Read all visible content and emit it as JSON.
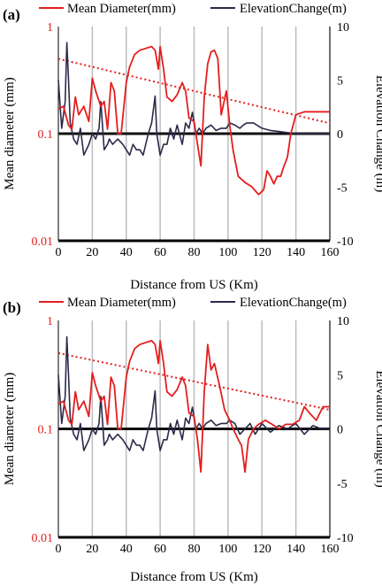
{
  "colors": {
    "diameter": "#e41e1e",
    "elevation": "#2a2a4a",
    "trend": "#e41e1e",
    "grid": "#bdbdbd",
    "ref": "#111111"
  },
  "chart_data": [
    {
      "panel_label": "(a)",
      "type": "line",
      "xlabel": "Distance from US (Km)",
      "ylabel_left": "Mean diameter (mm)",
      "ylabel_right": "Elevation Change (m)",
      "xlim": [
        0,
        160
      ],
      "x_ticks": [
        "0",
        "20",
        "40",
        "60",
        "80",
        "100",
        "120",
        "140",
        "160"
      ],
      "y_left_scale": "log",
      "ylim_left": [
        0.01,
        1
      ],
      "y_left_ticks": [
        "1",
        "0.1",
        "0.01"
      ],
      "ylim_right": [
        -10,
        10
      ],
      "y_right_ticks": [
        "10",
        "5",
        "0",
        "-5",
        "-10"
      ],
      "grid": "vertical",
      "legend": {
        "position": "top",
        "entries": [
          "Mean Diameter(mm)",
          "ElevationChange(m)"
        ]
      },
      "series": [
        {
          "name": "Mean Diameter(mm)",
          "axis": "left",
          "x": [
            0,
            3,
            6,
            8,
            10,
            12,
            15,
            18,
            20,
            22,
            25,
            27,
            29,
            31,
            33,
            35,
            37,
            40,
            42,
            45,
            48,
            52,
            55,
            57,
            59,
            60,
            62,
            64,
            67,
            70,
            73,
            75,
            77,
            80,
            82,
            84,
            86,
            88,
            90,
            92,
            94,
            96,
            99,
            101,
            103,
            106,
            110,
            114,
            118,
            121,
            123,
            125,
            127,
            129,
            131,
            133,
            135,
            137,
            140,
            145,
            150,
            155,
            160
          ],
          "y": [
            0.17,
            0.18,
            0.12,
            0.11,
            0.22,
            0.15,
            0.18,
            0.13,
            0.33,
            0.25,
            0.18,
            0.2,
            0.11,
            0.3,
            0.25,
            0.1,
            0.1,
            0.3,
            0.42,
            0.55,
            0.6,
            0.63,
            0.65,
            0.6,
            0.4,
            0.65,
            0.4,
            0.22,
            0.2,
            0.23,
            0.3,
            0.25,
            0.14,
            0.13,
            0.08,
            0.05,
            0.22,
            0.45,
            0.58,
            0.6,
            0.5,
            0.15,
            0.25,
            0.12,
            0.07,
            0.04,
            0.035,
            0.032,
            0.027,
            0.03,
            0.045,
            0.04,
            0.034,
            0.04,
            0.04,
            0.05,
            0.06,
            0.1,
            0.15,
            0.16,
            0.16,
            0.16,
            0.16
          ]
        },
        {
          "name": "ElevationChange(m)",
          "axis": "right",
          "x": [
            0,
            2,
            4,
            5,
            6,
            7,
            9,
            11,
            13,
            15,
            18,
            20,
            22,
            24,
            25,
            27,
            29,
            30,
            32,
            35,
            38,
            40,
            42,
            44,
            46,
            48,
            50,
            53,
            55,
            57,
            58,
            60,
            62,
            64,
            66,
            68,
            70,
            73,
            75,
            77,
            79,
            81,
            83,
            85,
            87,
            90,
            93,
            96,
            99,
            101,
            104,
            107,
            109,
            111,
            115,
            120,
            125,
            130,
            135,
            140,
            150,
            160
          ],
          "y": [
            5,
            0.5,
            3,
            8.5,
            5,
            1,
            -0.5,
            -1,
            0.5,
            -2,
            -1,
            0,
            -0.5,
            0.5,
            3,
            -1.5,
            -1,
            -0.5,
            -1,
            -0.5,
            -1,
            -1.5,
            -2,
            -1,
            -1.5,
            -1.5,
            -2,
            0,
            1,
            3.5,
            0,
            -2,
            -1,
            -1,
            0.5,
            -0.5,
            0.8,
            -1,
            1,
            0.5,
            2,
            0,
            0.5,
            0,
            0.5,
            0.8,
            0.3,
            0.5,
            0.5,
            1,
            0.8,
            0.5,
            0.8,
            1,
            1,
            0.5,
            0.3,
            0.2,
            0.1,
            0,
            0,
            0
          ]
        }
      ],
      "trend_left": {
        "from": [
          0,
          0.5
        ],
        "to": [
          160,
          0.125
        ]
      },
      "reference_line_right": 0
    },
    {
      "panel_label": "(b)",
      "type": "line",
      "xlabel": "Distance from US (Km)",
      "ylabel_left": "Mean diameter (mm)",
      "ylabel_right": "Elevation Change (m)",
      "xlim": [
        0,
        160
      ],
      "x_ticks": [
        "0",
        "20",
        "40",
        "60",
        "80",
        "100",
        "120",
        "140",
        "160"
      ],
      "y_left_scale": "log",
      "ylim_left": [
        0.01,
        1
      ],
      "y_left_ticks": [
        "1",
        "0.1",
        "0.01"
      ],
      "ylim_right": [
        -10,
        10
      ],
      "y_right_ticks": [
        "10",
        "5",
        "0",
        "-5",
        "-10"
      ],
      "grid": "vertical",
      "legend": {
        "position": "top",
        "entries": [
          "Mean Diameter(mm)",
          "ElevationChange(m)"
        ]
      },
      "series": [
        {
          "name": "Mean Diameter(mm)",
          "axis": "left",
          "x": [
            0,
            3,
            6,
            8,
            10,
            12,
            15,
            18,
            20,
            22,
            25,
            27,
            29,
            31,
            33,
            35,
            37,
            40,
            42,
            45,
            48,
            52,
            55,
            57,
            59,
            60,
            62,
            64,
            67,
            70,
            73,
            75,
            77,
            80,
            82,
            84,
            86,
            88,
            90,
            92,
            95,
            98,
            101,
            103,
            106,
            108,
            110,
            112,
            115,
            118,
            122,
            126,
            130,
            134,
            138,
            142,
            145,
            148,
            152,
            156,
            160
          ],
          "y": [
            0.17,
            0.18,
            0.12,
            0.11,
            0.22,
            0.15,
            0.18,
            0.13,
            0.33,
            0.25,
            0.18,
            0.2,
            0.11,
            0.3,
            0.25,
            0.1,
            0.1,
            0.3,
            0.42,
            0.55,
            0.6,
            0.63,
            0.65,
            0.6,
            0.4,
            0.65,
            0.4,
            0.22,
            0.2,
            0.23,
            0.3,
            0.25,
            0.14,
            0.13,
            0.08,
            0.04,
            0.22,
            0.6,
            0.35,
            0.4,
            0.25,
            0.15,
            0.12,
            0.1,
            0.08,
            0.07,
            0.04,
            0.08,
            0.1,
            0.11,
            0.12,
            0.11,
            0.1,
            0.11,
            0.11,
            0.12,
            0.16,
            0.14,
            0.12,
            0.16,
            0.16
          ]
        },
        {
          "name": "ElevationChange(m)",
          "axis": "right",
          "x": [
            0,
            2,
            4,
            5,
            6,
            7,
            9,
            11,
            13,
            15,
            18,
            20,
            22,
            24,
            25,
            27,
            29,
            30,
            32,
            35,
            38,
            40,
            42,
            44,
            46,
            48,
            50,
            53,
            55,
            57,
            58,
            60,
            62,
            64,
            66,
            68,
            70,
            73,
            75,
            77,
            79,
            81,
            83,
            85,
            87,
            90,
            93,
            96,
            99,
            101,
            104,
            107,
            110,
            113,
            116,
            120,
            125,
            130,
            135,
            140,
            145,
            150,
            155,
            160
          ],
          "y": [
            5,
            0.5,
            3,
            8.5,
            5,
            1,
            -0.5,
            -1,
            0.5,
            -2,
            -1,
            0,
            -0.5,
            0.5,
            3,
            -1.5,
            -1,
            -0.5,
            -1,
            -0.5,
            -1,
            -1.5,
            -2,
            -1,
            -1.5,
            -1.5,
            -2,
            0,
            1,
            3.5,
            0,
            -2,
            -1,
            -1,
            0.5,
            -0.5,
            0.8,
            -1,
            1,
            0.5,
            2,
            0,
            0.5,
            0,
            0.5,
            0.8,
            0.3,
            0.5,
            0.5,
            0.8,
            0.5,
            -0.5,
            0,
            0.5,
            -0.5,
            0.5,
            -0.3,
            0.3,
            0,
            0.5,
            -0.5,
            0.3,
            0,
            0
          ]
        }
      ],
      "trend_left": {
        "from": [
          0,
          0.5
        ],
        "to": [
          160,
          0.15
        ]
      },
      "reference_line_right": 0
    }
  ]
}
